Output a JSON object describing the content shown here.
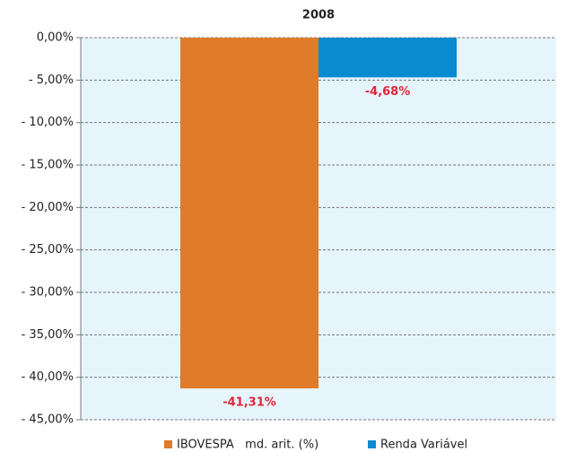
{
  "chart_data": {
    "type": "bar",
    "categories": [
      "2008"
    ],
    "series": [
      {
        "name": "IBOVESPA   md. arit. (%)",
        "color": "#e07b2a",
        "values": [
          -41.31
        ],
        "value_labels": [
          "-41,31%"
        ]
      },
      {
        "name": "Renda Variável",
        "color": "#0a8bd0",
        "values": [
          -4.68
        ],
        "value_labels": [
          "-4,68%"
        ]
      }
    ],
    "ylim": [
      -45,
      0
    ],
    "yticks": [
      {
        "value": 0,
        "label": "0,00%"
      },
      {
        "value": -5,
        "label": "- 5,00%"
      },
      {
        "value": -10,
        "label": "- 10,00%"
      },
      {
        "value": -15,
        "label": "- 15,00%"
      },
      {
        "value": -20,
        "label": "- 20,00%"
      },
      {
        "value": -25,
        "label": "- 25,00%"
      },
      {
        "value": -30,
        "label": "- 30,00%"
      },
      {
        "value": -35,
        "label": "- 35,00%"
      },
      {
        "value": -40,
        "label": "- 40,00%"
      },
      {
        "value": -45,
        "label": "- 45,00%"
      }
    ],
    "grid": true,
    "value_label_color": "#e0263a",
    "plot_background": "#e6f4fb",
    "legend": "bottom"
  }
}
